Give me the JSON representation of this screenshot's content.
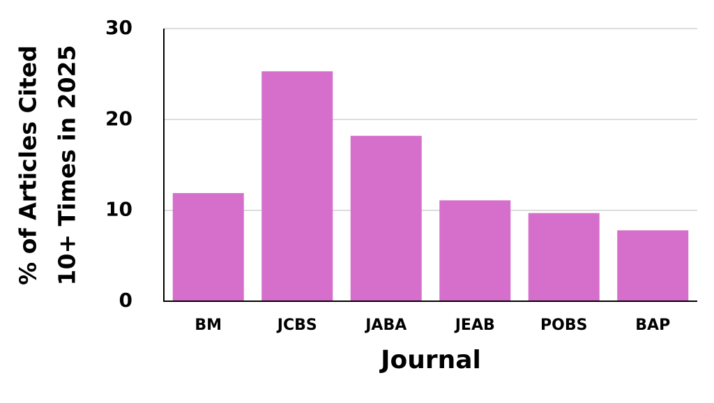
{
  "chart_data": {
    "type": "bar",
    "y_label": [
      "% of Articles Cited",
      "10+ Times in 2025"
    ],
    "x_label": "Journal",
    "categories": [
      "BM",
      "JCBS",
      "JABA",
      "JEAB",
      "POBS",
      "BAP"
    ],
    "values": [
      11.9,
      25.3,
      18.2,
      11.1,
      9.7,
      7.8
    ],
    "color": "#d56fcb",
    "ylim": [
      0,
      30
    ],
    "yticks": [
      0,
      10,
      20,
      30
    ],
    "grid": true
  }
}
